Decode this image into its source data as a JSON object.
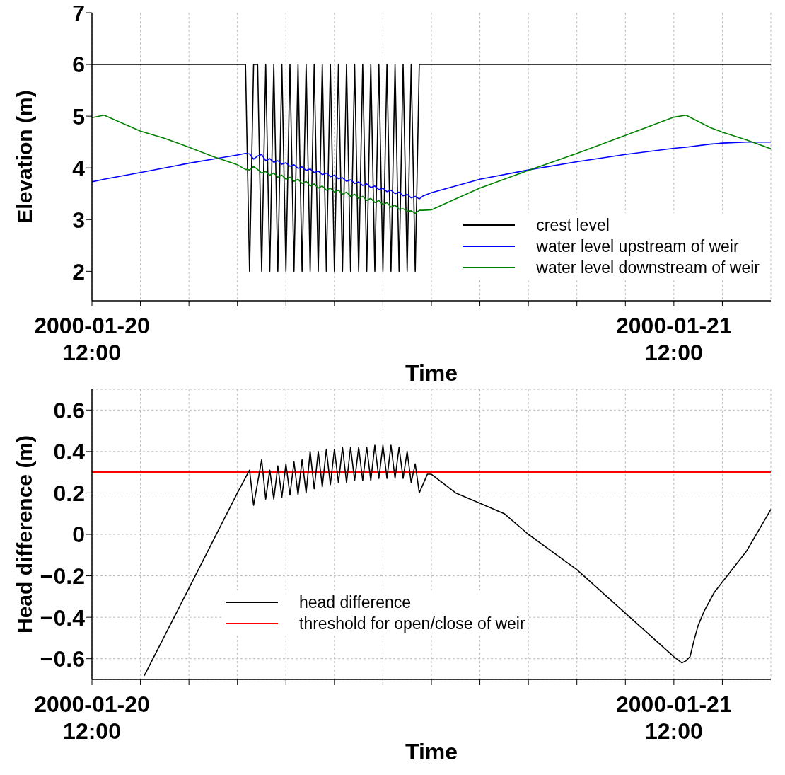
{
  "chart_data": [
    {
      "type": "line",
      "xlabel": "Time",
      "ylabel": "Elevation (m)",
      "x": [
        "2000-01-20T12:00",
        "2000-01-20T12:30",
        "2000-01-20T14:00",
        "2000-01-20T15:00",
        "2000-01-20T16:00",
        "2000-01-20T17:00",
        "2000-01-20T18:00",
        "2000-01-20T18:20",
        "2000-01-20T18:30",
        "2000-01-20T18:40",
        "2000-01-20T18:50",
        "2000-01-20T19:00",
        "2000-01-20T19:10",
        "2000-01-20T19:20",
        "2000-01-20T19:30",
        "2000-01-20T19:40",
        "2000-01-20T19:50",
        "2000-01-20T20:00",
        "2000-01-20T20:10",
        "2000-01-20T20:20",
        "2000-01-20T20:30",
        "2000-01-20T20:40",
        "2000-01-20T20:50",
        "2000-01-20T21:00",
        "2000-01-20T21:10",
        "2000-01-20T21:20",
        "2000-01-20T21:30",
        "2000-01-20T21:40",
        "2000-01-20T21:50",
        "2000-01-20T22:00",
        "2000-01-20T22:10",
        "2000-01-20T22:20",
        "2000-01-20T22:30",
        "2000-01-20T22:40",
        "2000-01-20T22:50",
        "2000-01-20T23:00",
        "2000-01-20T23:10",
        "2000-01-20T23:20",
        "2000-01-20T23:30",
        "2000-01-20T23:40",
        "2000-01-20T23:50",
        "2000-01-21T00:00",
        "2000-01-21T00:10",
        "2000-01-21T00:20",
        "2000-01-21T00:30",
        "2000-01-21T00:40",
        "2000-01-21T00:50",
        "2000-01-21T01:00",
        "2000-01-21T01:10",
        "2000-01-21T01:20",
        "2000-01-21T01:30",
        "2000-01-21T01:40",
        "2000-01-21T02:00",
        "2000-01-21T03:00",
        "2000-01-21T04:00",
        "2000-01-21T06:00",
        "2000-01-21T08:00",
        "2000-01-21T10:00",
        "2000-01-21T12:00",
        "2000-01-21T12:30",
        "2000-01-21T13:30",
        "2000-01-21T14:00",
        "2000-01-21T15:00",
        "2000-01-21T16:00"
      ],
      "series": [
        {
          "name": "crest level",
          "color": "#000000",
          "values": [
            6,
            6,
            6,
            6,
            6,
            6,
            6,
            6,
            2,
            6,
            6,
            2,
            6,
            2,
            6,
            2,
            6,
            2,
            6,
            2,
            6,
            2,
            6,
            2,
            6,
            2,
            6,
            2,
            6,
            2,
            6,
            2,
            6,
            2,
            6,
            2,
            6,
            2,
            6,
            2,
            6,
            2,
            6,
            2,
            6,
            2,
            6,
            2,
            6,
            2,
            6,
            6,
            6,
            6,
            6,
            6,
            6,
            6,
            6,
            6,
            6,
            6,
            6,
            6
          ]
        },
        {
          "name": "water level upstream of weir",
          "color": "#0000ff",
          "values": [
            3.73,
            3.78,
            3.91,
            4.0,
            4.09,
            4.17,
            4.25,
            4.28,
            4.27,
            4.17,
            4.23,
            4.26,
            4.14,
            4.18,
            4.11,
            4.14,
            4.07,
            4.1,
            4.03,
            4.06,
            3.99,
            4.02,
            3.95,
            3.98,
            3.91,
            3.94,
            3.87,
            3.9,
            3.83,
            3.86,
            3.79,
            3.81,
            3.74,
            3.77,
            3.7,
            3.73,
            3.66,
            3.69,
            3.62,
            3.65,
            3.58,
            3.61,
            3.54,
            3.57,
            3.5,
            3.53,
            3.46,
            3.49,
            3.42,
            3.45,
            3.4,
            3.46,
            3.52,
            3.65,
            3.78,
            3.96,
            4.12,
            4.26,
            4.38,
            4.4,
            4.46,
            4.48,
            4.5,
            4.5
          ]
        },
        {
          "name": "water level downstream of weir",
          "color": "#008000",
          "values": [
            4.97,
            5.02,
            4.71,
            4.57,
            4.4,
            4.22,
            4.06,
            3.97,
            3.96,
            4.03,
            3.97,
            3.9,
            3.93,
            3.86,
            3.9,
            3.82,
            3.86,
            3.78,
            3.82,
            3.74,
            3.78,
            3.7,
            3.74,
            3.65,
            3.69,
            3.61,
            3.65,
            3.57,
            3.61,
            3.53,
            3.57,
            3.49,
            3.53,
            3.45,
            3.49,
            3.41,
            3.45,
            3.37,
            3.41,
            3.33,
            3.37,
            3.29,
            3.33,
            3.24,
            3.28,
            3.2,
            3.21,
            3.16,
            3.17,
            3.12,
            3.18,
            3.18,
            3.19,
            3.4,
            3.61,
            3.95,
            4.28,
            4.63,
            4.98,
            5.02,
            4.78,
            4.69,
            4.54,
            4.37
          ]
        }
      ],
      "xlim": [
        "2000-01-20T12:00",
        "2000-01-21T16:00"
      ],
      "xticks": [
        {
          "value": "2000-01-20T12:00",
          "label": "2000-01-20\n12:00"
        },
        {
          "value": "2000-01-20T14:00",
          "label": null
        },
        {
          "value": "2000-01-20T16:00",
          "label": null
        },
        {
          "value": "2000-01-20T18:00",
          "label": null
        },
        {
          "value": "2000-01-20T20:00",
          "label": null
        },
        {
          "value": "2000-01-20T22:00",
          "label": null
        },
        {
          "value": "2000-01-21T00:00",
          "label": null
        },
        {
          "value": "2000-01-21T02:00",
          "label": null
        },
        {
          "value": "2000-01-21T04:00",
          "label": null
        },
        {
          "value": "2000-01-21T06:00",
          "label": null
        },
        {
          "value": "2000-01-21T08:00",
          "label": null
        },
        {
          "value": "2000-01-21T10:00",
          "label": null
        },
        {
          "value": "2000-01-21T12:00",
          "label": "2000-01-21\n12:00"
        },
        {
          "value": "2000-01-21T14:00",
          "label": null
        }
      ],
      "ylim": [
        1.43,
        7
      ],
      "yticks": [
        2,
        3,
        4,
        5,
        6,
        7
      ],
      "grid": "x",
      "legend": "bottom right",
      "marker": "none",
      "line_style": "solid"
    },
    {
      "type": "line",
      "xlabel": "Time",
      "ylabel": "Head difference (m)",
      "x": [
        "2000-01-20T14:10",
        "2000-01-20T16:00",
        "2000-01-20T18:00",
        "2000-01-20T18:30",
        "2000-01-20T18:40",
        "2000-01-20T19:00",
        "2000-01-20T19:10",
        "2000-01-20T19:20",
        "2000-01-20T19:30",
        "2000-01-20T19:40",
        "2000-01-20T19:50",
        "2000-01-20T20:00",
        "2000-01-20T20:10",
        "2000-01-20T20:20",
        "2000-01-20T20:30",
        "2000-01-20T20:40",
        "2000-01-20T20:50",
        "2000-01-20T21:00",
        "2000-01-20T21:10",
        "2000-01-20T21:20",
        "2000-01-20T21:30",
        "2000-01-20T21:40",
        "2000-01-20T21:50",
        "2000-01-20T22:00",
        "2000-01-20T22:10",
        "2000-01-20T22:20",
        "2000-01-20T22:30",
        "2000-01-20T22:40",
        "2000-01-20T22:50",
        "2000-01-20T23:00",
        "2000-01-20T23:10",
        "2000-01-20T23:20",
        "2000-01-20T23:30",
        "2000-01-20T23:40",
        "2000-01-20T23:50",
        "2000-01-21T00:00",
        "2000-01-21T00:10",
        "2000-01-21T00:20",
        "2000-01-21T00:30",
        "2000-01-21T00:40",
        "2000-01-21T00:50",
        "2000-01-21T01:00",
        "2000-01-21T01:10",
        "2000-01-21T01:20",
        "2000-01-21T01:30",
        "2000-01-21T01:50",
        "2000-01-21T02:00",
        "2000-01-21T03:00",
        "2000-01-21T04:00",
        "2000-01-21T05:00",
        "2000-01-21T06:00",
        "2000-01-21T08:00",
        "2000-01-21T10:00",
        "2000-01-21T12:00",
        "2000-01-21T12:20",
        "2000-01-21T12:30",
        "2000-01-21T12:40",
        "2000-01-21T12:50",
        "2000-01-21T13:00",
        "2000-01-21T13:15",
        "2000-01-21T13:40",
        "2000-01-21T14:00",
        "2000-01-21T15:00",
        "2000-01-21T16:00"
      ],
      "series": [
        {
          "name": "head difference",
          "color": "#000000",
          "values": [
            -0.68,
            -0.26,
            0.2,
            0.31,
            0.14,
            0.36,
            0.17,
            0.31,
            0.17,
            0.33,
            0.18,
            0.34,
            0.19,
            0.35,
            0.19,
            0.36,
            0.2,
            0.4,
            0.22,
            0.4,
            0.23,
            0.41,
            0.24,
            0.41,
            0.25,
            0.42,
            0.25,
            0.42,
            0.26,
            0.42,
            0.26,
            0.42,
            0.26,
            0.43,
            0.27,
            0.43,
            0.27,
            0.43,
            0.27,
            0.42,
            0.27,
            0.4,
            0.25,
            0.34,
            0.2,
            0.29,
            0.29,
            0.2,
            0.15,
            0.1,
            0.0,
            -0.17,
            -0.38,
            -0.59,
            -0.62,
            -0.61,
            -0.59,
            -0.51,
            -0.44,
            -0.37,
            -0.28,
            -0.23,
            -0.08,
            0.12
          ]
        }
      ],
      "ref_lines": [
        {
          "axis": "y",
          "value": 0.3,
          "label": "threshold for open/close of weir",
          "color": "#ff0000"
        }
      ],
      "xlim": [
        "2000-01-20T12:00",
        "2000-01-21T16:00"
      ],
      "xticks": [
        {
          "value": "2000-01-20T12:00",
          "label": "2000-01-20\n12:00"
        },
        {
          "value": "2000-01-20T14:00",
          "label": null
        },
        {
          "value": "2000-01-20T16:00",
          "label": null
        },
        {
          "value": "2000-01-20T18:00",
          "label": null
        },
        {
          "value": "2000-01-20T20:00",
          "label": null
        },
        {
          "value": "2000-01-20T22:00",
          "label": null
        },
        {
          "value": "2000-01-21T00:00",
          "label": null
        },
        {
          "value": "2000-01-21T02:00",
          "label": null
        },
        {
          "value": "2000-01-21T04:00",
          "label": null
        },
        {
          "value": "2000-01-21T06:00",
          "label": null
        },
        {
          "value": "2000-01-21T08:00",
          "label": null
        },
        {
          "value": "2000-01-21T10:00",
          "label": null
        },
        {
          "value": "2000-01-21T12:00",
          "label": "2000-01-21\n12:00"
        },
        {
          "value": "2000-01-21T14:00",
          "label": null
        }
      ],
      "ylim": [
        -0.7,
        0.7
      ],
      "yticks": [
        {
          "value": -0.6,
          "label": "−0.6"
        },
        {
          "value": -0.4,
          "label": "−0.4"
        },
        {
          "value": -0.2,
          "label": "−0.2"
        },
        0,
        0.2,
        0.4,
        0.6
      ],
      "grid": true,
      "legend": "bottom",
      "marker": "none",
      "line_style": "solid"
    }
  ]
}
